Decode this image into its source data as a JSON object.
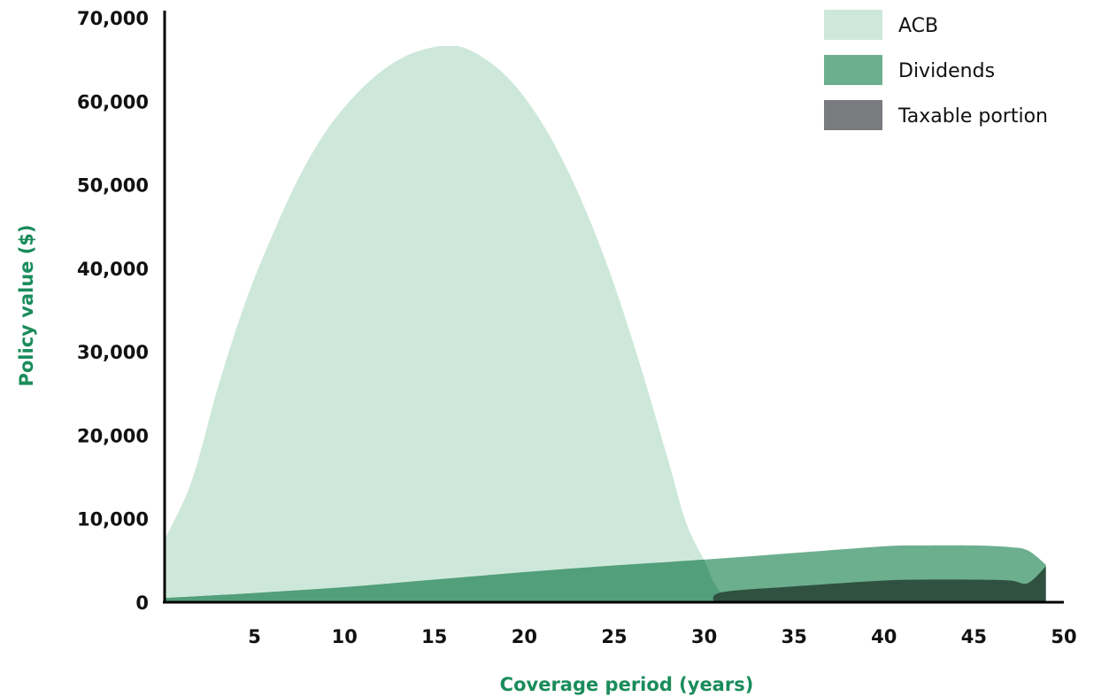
{
  "chart_data": {
    "type": "area",
    "title": "",
    "xlabel": "Coverage period (years)",
    "ylabel": "Policy value ($)",
    "label_color": "#1a8c5b",
    "xlim": [
      0,
      50
    ],
    "ylim": [
      0,
      70000
    ],
    "x_ticks": [
      5,
      10,
      15,
      20,
      25,
      30,
      35,
      40,
      45,
      50
    ],
    "y_ticks": [
      0,
      10000,
      20000,
      30000,
      40000,
      50000,
      60000,
      70000
    ],
    "y_tick_labels": [
      "0",
      "10,000",
      "20,000",
      "30,000",
      "40,000",
      "50,000",
      "60,000",
      "70,000"
    ],
    "grid": false,
    "legend_position": "top-right",
    "series": [
      {
        "name": "ACB",
        "color": "#cde8da",
        "x": [
          0,
          1.5,
          3,
          4.5,
          6,
          7.5,
          9,
          10.5,
          12,
          13.5,
          15,
          16,
          16.5,
          17.5,
          19,
          20.5,
          22,
          23.5,
          25,
          26.5,
          28,
          29,
          30,
          30.5,
          31
        ],
        "y": [
          7500,
          14500,
          26000,
          36000,
          44000,
          51000,
          56500,
          60500,
          63500,
          65500,
          66500,
          66600,
          66500,
          65500,
          63000,
          59000,
          53500,
          46500,
          38000,
          28000,
          17000,
          9500,
          5000,
          2500,
          1000
        ]
      },
      {
        "name": "Dividends",
        "color": "#6caf8f",
        "x": [
          0,
          5,
          10,
          15,
          20,
          25,
          30,
          35,
          40,
          42,
          45,
          47,
          48,
          49
        ],
        "y": [
          500,
          1100,
          1800,
          2700,
          3600,
          4400,
          5100,
          5900,
          6700,
          6800,
          6800,
          6600,
          6200,
          4500
        ]
      },
      {
        "name": "Taxable portion",
        "color": "#7a7b7f",
        "overlap_color": "#305140",
        "x": [
          30.5,
          31,
          35,
          40,
          42,
          45,
          47,
          48,
          49
        ],
        "y": [
          0,
          1200,
          1900,
          2600,
          2700,
          2700,
          2600,
          2300,
          4300
        ]
      }
    ]
  }
}
